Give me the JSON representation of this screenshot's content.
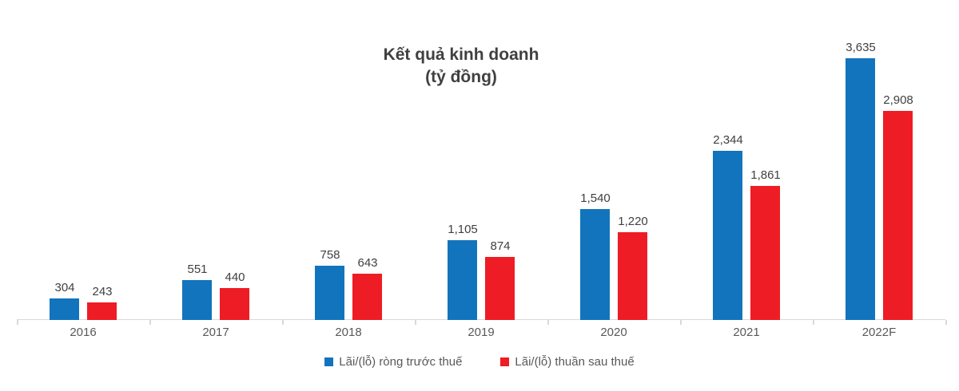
{
  "title": {
    "line1": "Kết quả kinh doanh",
    "line2": "(tỷ đồng)"
  },
  "colors": {
    "series_before_tax": "#1274bc",
    "series_after_tax": "#ee1c24",
    "axis": "#d9d9d9",
    "value_label": "#404040",
    "tick_label": "#595959"
  },
  "chart_data": {
    "type": "bar",
    "title": "Kết quả kinh doanh (tỷ đồng)",
    "xlabel": "",
    "ylabel": "",
    "ylim": [
      0,
      3700
    ],
    "grid": false,
    "legend_position": "bottom",
    "categories": [
      "2016",
      "2017",
      "2018",
      "2019",
      "2020",
      "2021",
      "2022F"
    ],
    "series": [
      {
        "name": "Lãi/(lỗ) ròng trước thuế",
        "color": "#1274bc",
        "values": [
          304,
          551,
          758,
          1105,
          1540,
          2344,
          3635
        ],
        "labels": [
          "304",
          "551",
          "758",
          "1,105",
          "1,540",
          "2,344",
          "3,635"
        ]
      },
      {
        "name": "Lãi/(lỗ) thuần sau thuế",
        "color": "#ee1c24",
        "values": [
          243,
          440,
          643,
          874,
          1220,
          1861,
          2908
        ],
        "labels": [
          "243",
          "440",
          "643",
          "874",
          "1,220",
          "1,861",
          "2,908"
        ]
      }
    ]
  }
}
